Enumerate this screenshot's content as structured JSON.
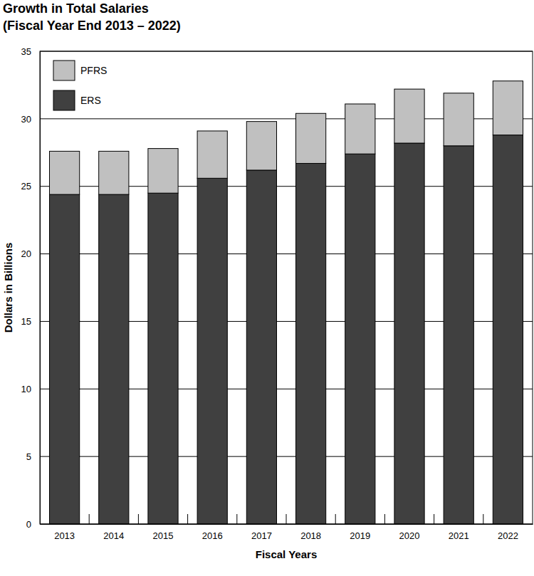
{
  "chart_data": {
    "type": "bar",
    "stacked": true,
    "title": "Growth in Total Salaries",
    "subtitle": "(Fiscal Year End 2013 – 2022)",
    "x_label": "Fiscal Years",
    "y_label": "Dollars in Billions",
    "categories": [
      "2013",
      "2014",
      "2015",
      "2016",
      "2017",
      "2018",
      "2019",
      "2020",
      "2021",
      "2022"
    ],
    "series": [
      {
        "name": "ERS",
        "color": "#404040",
        "values": [
          24.4,
          24.4,
          24.5,
          25.6,
          26.2,
          26.7,
          27.4,
          28.2,
          28.0,
          28.8
        ]
      },
      {
        "name": "PFRS",
        "color": "#c0c0c0",
        "values": [
          3.2,
          3.2,
          3.3,
          3.5,
          3.6,
          3.7,
          3.7,
          4.0,
          3.9,
          4.0
        ]
      }
    ],
    "ylim": [
      0,
      35
    ],
    "yticks": [
      0,
      5,
      10,
      15,
      20,
      25,
      30,
      35
    ],
    "grid": true,
    "legend": "upper left"
  }
}
